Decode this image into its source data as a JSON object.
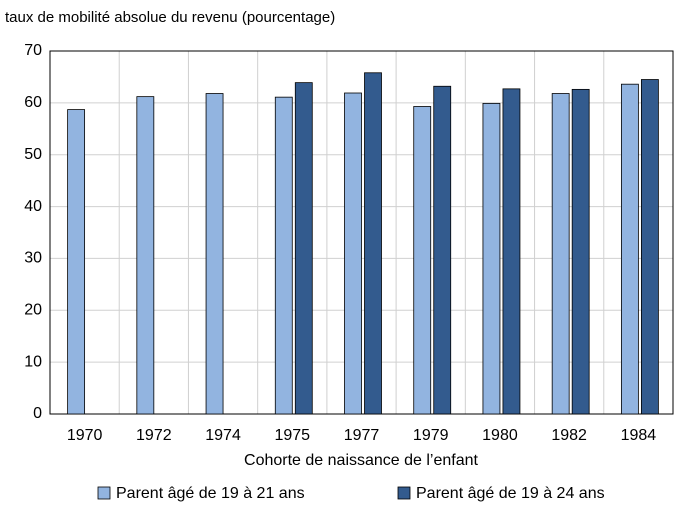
{
  "chart_data": {
    "type": "bar",
    "title": "taux de mobilité absolue du revenu (pourcentage)",
    "x_label": "Cohorte de naissance de l’enfant",
    "categories": [
      "1970",
      "1972",
      "1974",
      "1975",
      "1977",
      "1979",
      "1980",
      "1982",
      "1984"
    ],
    "series": [
      {
        "name": "Parent âgé de 19 à 21 ans",
        "color": "#92b4e0",
        "values": [
          58.7,
          61.2,
          61.8,
          61.1,
          61.9,
          59.3,
          59.9,
          61.8,
          63.6
        ]
      },
      {
        "name": "Parent âgé de 19 à 24 ans",
        "color": "#335b8e",
        "values": [
          null,
          null,
          null,
          63.9,
          65.8,
          63.2,
          62.7,
          62.6,
          64.5
        ]
      }
    ],
    "ylim": [
      0,
      70
    ],
    "yticks": [
      0,
      10,
      20,
      30,
      40,
      50,
      60,
      70
    ],
    "grid": true,
    "legend": "bottom"
  }
}
